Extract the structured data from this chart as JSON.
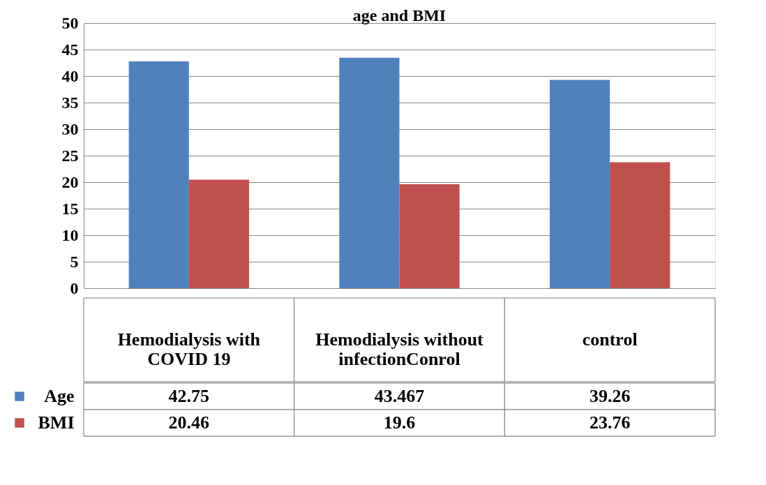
{
  "chart_data": {
    "type": "bar",
    "title": "age and BMI",
    "categories": [
      "Hemodialysis with COVID 19",
      "Hemodialysis without infectionConrol",
      "control"
    ],
    "series": [
      {
        "name": "Age",
        "color": "#4f81bd",
        "values": [
          42.75,
          43.467,
          39.26
        ]
      },
      {
        "name": "BMI",
        "color": "#c0504d",
        "values": [
          20.46,
          19.6,
          23.76
        ]
      }
    ],
    "ylim": [
      0,
      50
    ],
    "yticks": [
      0,
      5,
      10,
      15,
      20,
      25,
      30,
      35,
      40,
      45,
      50
    ],
    "grid": "y",
    "legend": "bottom left",
    "data_labels": true
  }
}
